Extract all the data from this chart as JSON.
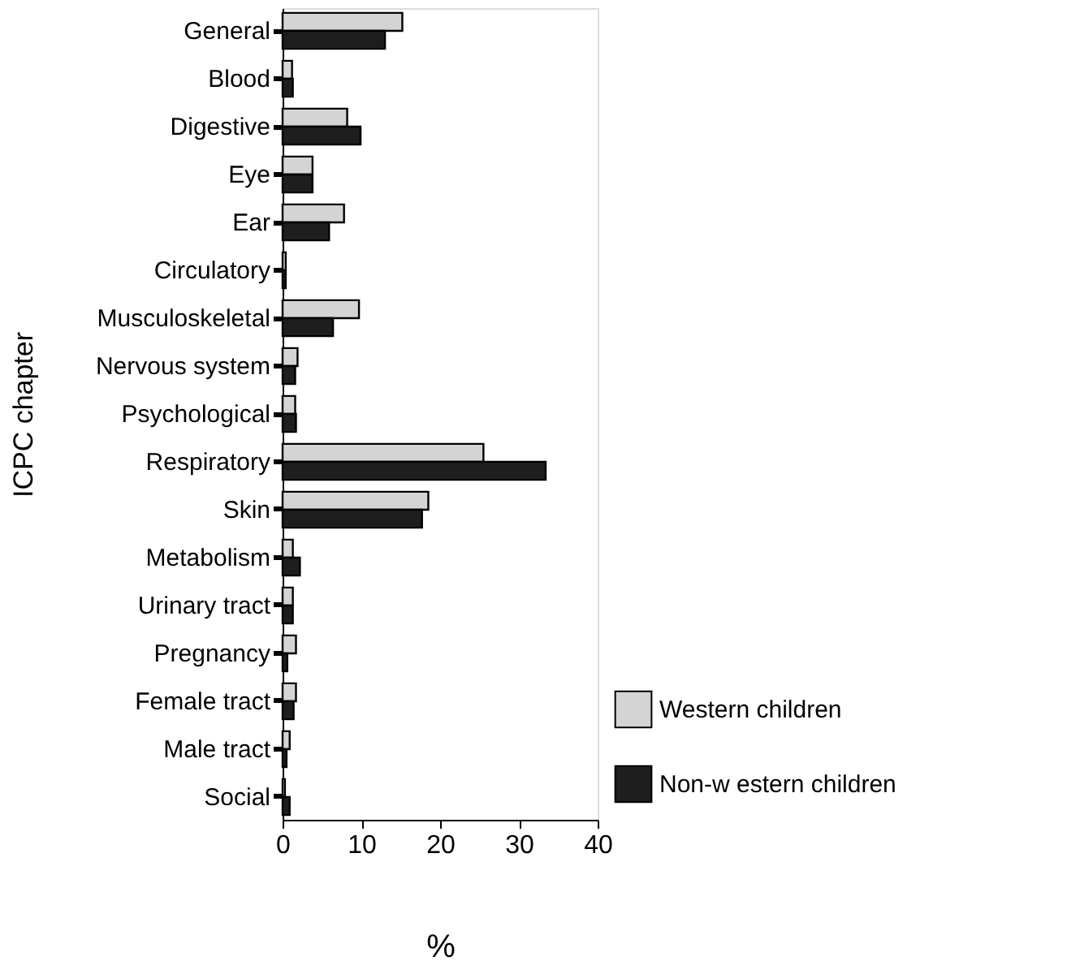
{
  "chart_data": {
    "type": "bar",
    "orientation": "horizontal",
    "xlabel": "%",
    "ylabel": "ICPC chapter",
    "categories": [
      "General",
      "Blood",
      "Digestive",
      "Eye",
      "Ear",
      "Circulatory",
      "Musculoskeletal",
      "Nervous system",
      "Psychological",
      "Respiratory",
      "Skin",
      "Metabolism",
      "Urinary tract",
      "Pregnancy",
      "Female tract",
      "Male tract",
      "Social"
    ],
    "series": [
      {
        "name": "Western children",
        "color": "#d4d4d4",
        "values": [
          15.2,
          1.2,
          8.2,
          3.8,
          7.8,
          0.4,
          9.7,
          1.9,
          1.6,
          25.5,
          18.5,
          1.3,
          1.3,
          1.7,
          1.7,
          0.9,
          0.3
        ]
      },
      {
        "name": "Non-w estern children",
        "color": "#1e1e1e",
        "values": [
          13.0,
          1.3,
          9.9,
          3.8,
          5.9,
          0.4,
          6.4,
          1.6,
          1.7,
          33.4,
          17.7,
          2.2,
          1.3,
          0.6,
          1.4,
          0.5,
          0.9
        ]
      }
    ],
    "xlim": [
      0,
      40
    ],
    "xticks": [
      0,
      10,
      20,
      30,
      40
    ],
    "grid": false,
    "legend": "bottom right"
  }
}
